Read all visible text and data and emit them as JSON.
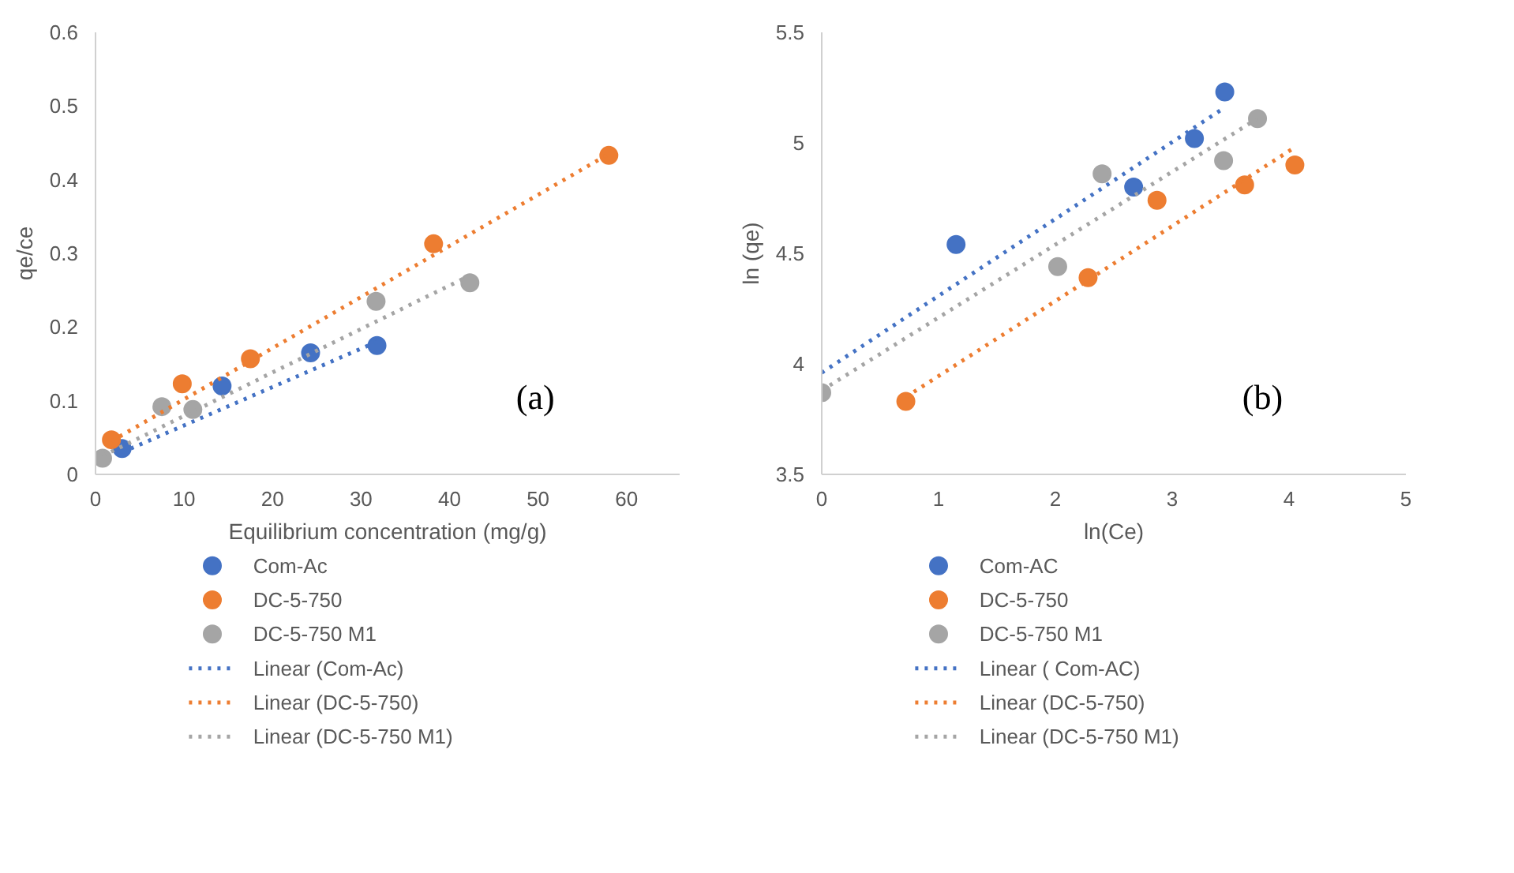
{
  "chart_data": [
    {
      "type": "scatter",
      "xlabel": "Equilibrium concentration (mg/g)",
      "ylabel": "qe/ce",
      "xlim": [
        0,
        66
      ],
      "ylim": [
        0,
        0.6
      ],
      "xticks": [
        0,
        10,
        20,
        30,
        40,
        50,
        60
      ],
      "yticks": [
        0,
        0.1,
        0.2,
        0.3,
        0.4,
        0.5,
        0.6
      ],
      "grid": false,
      "legend": "bottom",
      "marker": "circle",
      "annotations": [
        "(a)"
      ],
      "series": [
        {
          "name": "Com-Ac",
          "color": "#4472c4",
          "x": [
            3,
            14.3,
            24.3,
            31.8
          ],
          "values": [
            0.035,
            0.12,
            0.165,
            0.175
          ]
        },
        {
          "name": "DC-5-750",
          "color": "#ed7d31",
          "x": [
            1.8,
            9.8,
            17.5,
            38.2,
            58
          ],
          "values": [
            0.047,
            0.123,
            0.157,
            0.313,
            0.433
          ]
        },
        {
          "name": "DC-5-750 M1",
          "color": "#a5a5a5",
          "x": [
            0.8,
            7.5,
            11,
            31.7,
            42.3
          ],
          "values": [
            0.022,
            0.092,
            0.088,
            0.235,
            0.26
          ]
        },
        {
          "name": "Linear (Com-Ac)",
          "type": "line",
          "line_style": "dotted",
          "marker": "none",
          "color": "#4472c4",
          "x": [
            3,
            31.8
          ],
          "values": [
            0.03,
            0.18
          ]
        },
        {
          "name": "Linear (DC-5-750)",
          "type": "line",
          "line_style": "dotted",
          "marker": "none",
          "color": "#ed7d31",
          "x": [
            1.8,
            58
          ],
          "values": [
            0.045,
            0.435
          ]
        },
        {
          "name": "Linear (DC-5-750 M1)",
          "type": "line",
          "line_style": "dotted",
          "marker": "none",
          "color": "#a5a5a5",
          "x": [
            0.8,
            42.3
          ],
          "values": [
            0.025,
            0.27
          ]
        }
      ]
    },
    {
      "type": "scatter",
      "xlabel": "ln(Ce)",
      "ylabel": "ln (qe)",
      "xlim": [
        0,
        5
      ],
      "ylim": [
        3.5,
        5.5
      ],
      "xticks": [
        0,
        1,
        2,
        3,
        4,
        5
      ],
      "yticks": [
        3.5,
        4,
        4.5,
        5,
        5.5
      ],
      "grid": false,
      "legend": "bottom",
      "marker": "circle",
      "annotations": [
        "(b)"
      ],
      "series": [
        {
          "name": "Com-AC",
          "color": "#4472c4",
          "x": [
            1.15,
            2.67,
            3.19,
            3.45
          ],
          "values": [
            4.54,
            4.8,
            5.02,
            5.23
          ]
        },
        {
          "name": "DC-5-750",
          "color": "#ed7d31",
          "x": [
            0.72,
            2.28,
            2.87,
            3.62,
            4.05
          ],
          "values": [
            3.83,
            4.39,
            4.74,
            4.81,
            4.9
          ]
        },
        {
          "name": "DC-5-750 M1",
          "color": "#a5a5a5",
          "x": [
            0,
            2.02,
            2.4,
            3.44,
            3.73
          ],
          "values": [
            3.87,
            4.44,
            4.86,
            4.92,
            5.11
          ]
        },
        {
          "name": "Linear ( Com-AC)",
          "type": "line",
          "line_style": "dotted",
          "marker": "none",
          "color": "#4472c4",
          "x": [
            0,
            3.45
          ],
          "values": [
            3.96,
            5.16
          ]
        },
        {
          "name": "Linear (DC-5-750)",
          "type": "line",
          "line_style": "dotted",
          "marker": "none",
          "color": "#ed7d31",
          "x": [
            0.72,
            4.05
          ],
          "values": [
            3.85,
            4.98
          ]
        },
        {
          "name": "Linear (DC-5-750 M1)",
          "type": "line",
          "line_style": "dotted",
          "marker": "none",
          "color": "#a5a5a5",
          "x": [
            0,
            3.73
          ],
          "values": [
            3.88,
            5.11
          ]
        }
      ]
    }
  ]
}
